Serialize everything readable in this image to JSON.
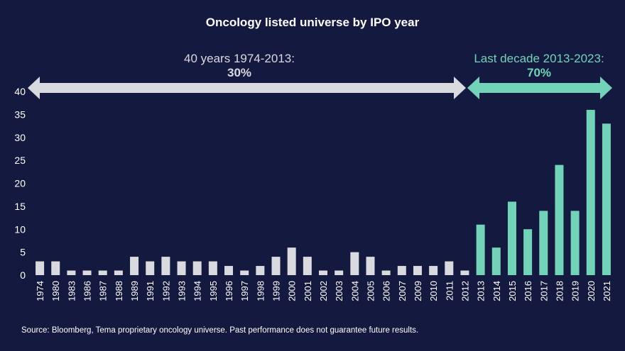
{
  "chart_data": {
    "type": "bar",
    "title": "Oncology listed universe by IPO year",
    "categories": [
      "1974",
      "1980",
      "1983",
      "1986",
      "1987",
      "1988",
      "1989",
      "1991",
      "1992",
      "1993",
      "1994",
      "1995",
      "1996",
      "1997",
      "1998",
      "1999",
      "2000",
      "2001",
      "2002",
      "2003",
      "2004",
      "2005",
      "2006",
      "2007",
      "2009",
      "2010",
      "2011",
      "2012",
      "2013",
      "2014",
      "2015",
      "2016",
      "2017",
      "2018",
      "2019",
      "2020",
      "2021"
    ],
    "values": [
      3,
      3,
      1,
      1,
      1,
      1,
      4,
      3,
      4,
      3,
      3,
      3,
      2,
      1,
      2,
      4,
      6,
      4,
      1,
      1,
      5,
      4,
      1,
      2,
      2,
      2,
      3,
      1,
      11,
      6,
      16,
      10,
      14,
      24,
      14,
      36,
      33
    ],
    "highlight_from": "2013",
    "ylim": [
      0,
      40
    ],
    "yticks": [
      0,
      5,
      10,
      15,
      20,
      25,
      30,
      35,
      40
    ],
    "colors": {
      "background": "#14193f",
      "bars_early": "#d9d9e0",
      "bars_recent": "#72d3b8",
      "text": "#ffffff"
    },
    "annotations": [
      {
        "label": "40 years 1974-2013:",
        "value": "30%",
        "color": "#d9d9e0",
        "from": "1974",
        "to": "2012"
      },
      {
        "label": "Last decade 2013-2023:",
        "value": "70%",
        "color": "#72d3b8",
        "from": "2013",
        "to": "2021"
      }
    ],
    "source": "Source: Bloomberg, Tema proprietary oncology universe. Past performance does not guarantee future results."
  }
}
